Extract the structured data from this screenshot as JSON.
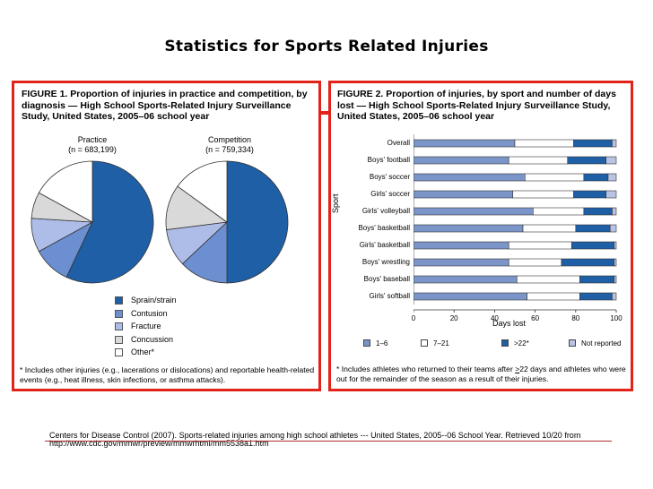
{
  "page_title": "Statistics for Sports Related Injuries",
  "colors": {
    "accent_border": "#e2231a",
    "sprain": "#1f5fa6",
    "contusion": "#6b8fd0",
    "fracture": "#aebde8",
    "concussion": "#d9d9d9",
    "other": "#ffffff",
    "days_1_6": "#7b95c9",
    "days_7_21": "#ffffff",
    "days_22": "#1f5fa6",
    "not_reported": "#b9c4e4"
  },
  "figure1": {
    "title_lead": "FIGURE 1.",
    "title_rest": " Proportion of injuries in practice and competition, by diagnosis — High School Sports-Related Injury Surveillance Study, United States, 2005–06 school year",
    "footnote": "* Includes other injuries (e.g., lacerations or dislocations) and reportable health-related events (e.g., heat illness, skin infections, or asthma attacks)."
  },
  "figure2": {
    "title_lead": "FIGURE 2.",
    "title_rest": " Proportion of injuries, by sport and number of days lost — High School Sports-Related Injury Surveillance Study, United States, 2005–06 school year",
    "footnote_pre": "* Includes athletes who returned to their teams after ",
    "footnote_value": "22",
    "footnote_post": " days and athletes who were out for the remainder of the season as a result of their injuries."
  },
  "chart_data": [
    {
      "type": "pie",
      "panels": [
        {
          "title": "Practice",
          "n_label": "(n = 683,199)",
          "values": [
            57,
            10,
            9,
            7,
            17
          ]
        },
        {
          "title": "Competition",
          "n_label": "(n = 759,334)",
          "values": [
            50,
            13,
            10,
            12,
            15
          ]
        }
      ],
      "categories": [
        "Sprain/strain",
        "Contusion",
        "Fracture",
        "Concussion",
        "Other*"
      ]
    },
    {
      "type": "bar",
      "orientation": "horizontal",
      "stacked": true,
      "categories": [
        "Overall",
        "Boys' football",
        "Boys' soccer",
        "Girls' soccer",
        "Girls' volleyball",
        "Boys' basketball",
        "Girls' basketball",
        "Boys' wrestling",
        "Boys' baseball",
        "Girls' softball"
      ],
      "series": [
        {
          "name": "1–6",
          "values": [
            50,
            47,
            55,
            49,
            59,
            54,
            47,
            47,
            51,
            56
          ]
        },
        {
          "name": "7–21",
          "values": [
            29,
            29,
            29,
            30,
            25,
            26,
            31,
            26,
            31,
            26
          ]
        },
        {
          "name": ">22*",
          "values": [
            19,
            19,
            12,
            16,
            14,
            17,
            21,
            26,
            17,
            16
          ]
        },
        {
          "name": "Not reported",
          "values": [
            2,
            5,
            4,
            5,
            2,
            3,
            1,
            1,
            1,
            2
          ]
        }
      ],
      "legend_labels": [
        "1–6",
        "7–21",
        ">22*",
        "Not reported"
      ],
      "xlabel": "Days lost",
      "ylabel": "Sport",
      "xlim": [
        0,
        100
      ],
      "xticks": [
        "0",
        "20",
        "40",
        "60",
        "80",
        "100"
      ]
    }
  ],
  "source": "Centers for Disease Control (2007). Sports-related injuries among high school athletes --- United States, 2005--06 School Year. Retrieved 10/20 from http://www.cdc.gov/mmwr/preview/mmwrhtml/mm5538a1.htm"
}
